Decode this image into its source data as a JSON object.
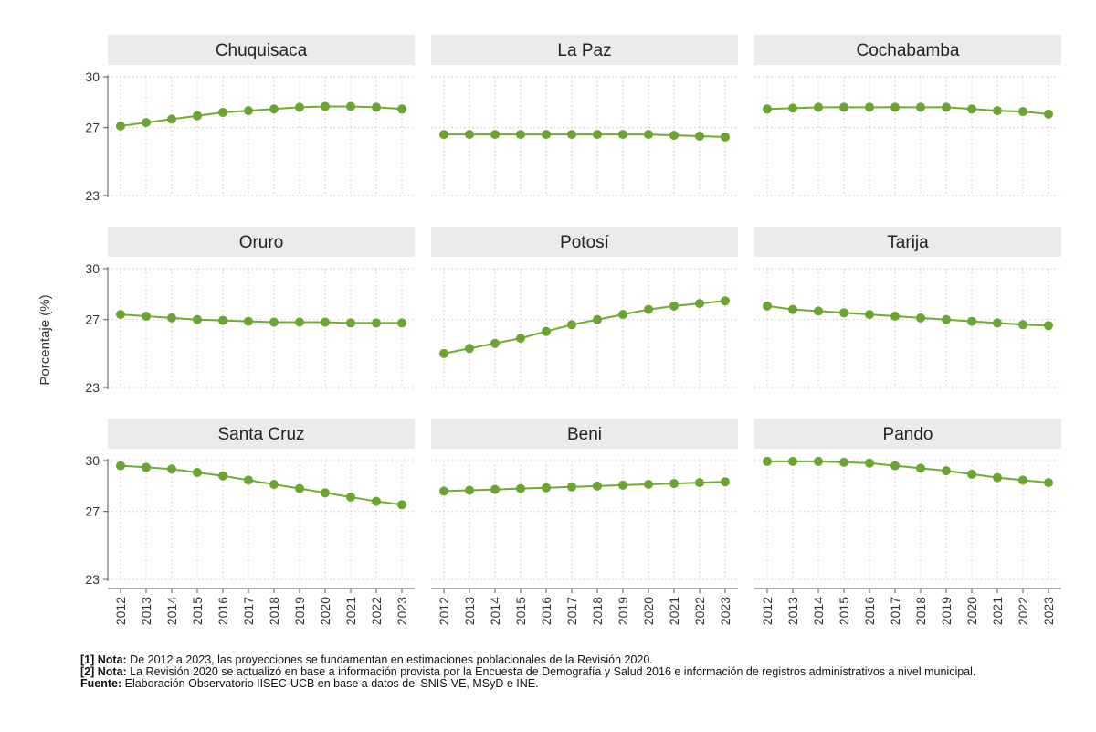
{
  "chart_data": {
    "type": "line",
    "ylabel": "Porcentaje (%)",
    "ylim": [
      23,
      30
    ],
    "yticks": [
      23,
      27,
      30
    ],
    "x": [
      "2012",
      "2013",
      "2014",
      "2015",
      "2016",
      "2017",
      "2018",
      "2019",
      "2020",
      "2021",
      "2022",
      "2023"
    ],
    "grid": true,
    "line_color": "#71ab34",
    "marker_color": "#6aa532",
    "panel_header_color": "#ebebeb",
    "facets": [
      {
        "name": "Chuquisaca",
        "values": [
          27.1,
          27.3,
          27.5,
          27.7,
          27.9,
          28.0,
          28.1,
          28.2,
          28.25,
          28.25,
          28.2,
          28.1
        ]
      },
      {
        "name": "La Paz",
        "values": [
          26.6,
          26.6,
          26.6,
          26.6,
          26.6,
          26.6,
          26.6,
          26.6,
          26.6,
          26.55,
          26.5,
          26.45
        ]
      },
      {
        "name": "Cochabamba",
        "values": [
          28.1,
          28.15,
          28.2,
          28.2,
          28.2,
          28.2,
          28.2,
          28.2,
          28.1,
          28.0,
          27.95,
          27.8
        ]
      },
      {
        "name": "Oruro",
        "values": [
          27.3,
          27.2,
          27.1,
          27.0,
          26.95,
          26.9,
          26.85,
          26.85,
          26.85,
          26.8,
          26.8,
          26.8
        ]
      },
      {
        "name": "Potosí",
        "values": [
          25.0,
          25.3,
          25.6,
          25.9,
          26.3,
          26.7,
          27.0,
          27.3,
          27.6,
          27.8,
          27.95,
          28.1
        ]
      },
      {
        "name": "Tarija",
        "values": [
          27.8,
          27.6,
          27.5,
          27.4,
          27.3,
          27.2,
          27.1,
          27.0,
          26.9,
          26.8,
          26.7,
          26.65
        ]
      },
      {
        "name": "Santa Cruz",
        "values": [
          29.7,
          29.6,
          29.5,
          29.3,
          29.1,
          28.85,
          28.6,
          28.35,
          28.1,
          27.85,
          27.6,
          27.4
        ]
      },
      {
        "name": "Beni",
        "values": [
          28.2,
          28.25,
          28.3,
          28.35,
          28.4,
          28.45,
          28.5,
          28.55,
          28.6,
          28.65,
          28.7,
          28.75
        ]
      },
      {
        "name": "Pando",
        "values": [
          29.95,
          29.95,
          29.95,
          29.9,
          29.85,
          29.7,
          29.55,
          29.4,
          29.2,
          29.0,
          28.85,
          28.7
        ]
      }
    ]
  },
  "notes": {
    "note1_label": "[1] Nota:",
    "note1_text": " De 2012 a 2023, las proyecciones se fundamentan en estimaciones poblacionales de la Revisión 2020.",
    "note2_label": "[2] Nota:",
    "note2_text": "  La Revisión 2020 se actualizó en base a información provista por la Encuesta de Demografía y Salud 2016 e información de registros administrativos a nivel municipal.",
    "source_label": "Fuente:",
    "source_text": " Elaboración Observatorio IISEC-UCB en base a datos del SNIS-VE, MSyD e INE."
  }
}
